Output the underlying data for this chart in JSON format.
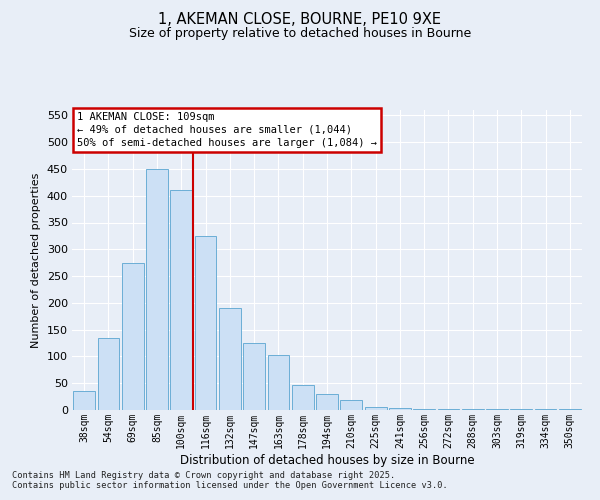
{
  "title_line1": "1, AKEMAN CLOSE, BOURNE, PE10 9XE",
  "title_line2": "Size of property relative to detached houses in Bourne",
  "xlabel": "Distribution of detached houses by size in Bourne",
  "ylabel": "Number of detached properties",
  "categories": [
    "38sqm",
    "54sqm",
    "69sqm",
    "85sqm",
    "100sqm",
    "116sqm",
    "132sqm",
    "147sqm",
    "163sqm",
    "178sqm",
    "194sqm",
    "210sqm",
    "225sqm",
    "241sqm",
    "256sqm",
    "272sqm",
    "288sqm",
    "303sqm",
    "319sqm",
    "334sqm",
    "350sqm"
  ],
  "values": [
    35,
    135,
    275,
    450,
    410,
    325,
    190,
    125,
    103,
    46,
    30,
    18,
    5,
    3,
    2,
    2,
    2,
    2,
    2,
    2,
    2
  ],
  "bar_color": "#cce0f5",
  "bar_edgecolor": "#6baed6",
  "vline_x": 4.5,
  "vline_color": "#cc0000",
  "annotation_text": "1 AKEMAN CLOSE: 109sqm\n← 49% of detached houses are smaller (1,044)\n50% of semi-detached houses are larger (1,084) →",
  "annotation_box_color": "#cc0000",
  "ylim": [
    0,
    560
  ],
  "yticks": [
    0,
    50,
    100,
    150,
    200,
    250,
    300,
    350,
    400,
    450,
    500,
    550
  ],
  "background_color": "#e8eef7",
  "grid_color": "#ffffff",
  "footer": "Contains HM Land Registry data © Crown copyright and database right 2025.\nContains public sector information licensed under the Open Government Licence v3.0."
}
